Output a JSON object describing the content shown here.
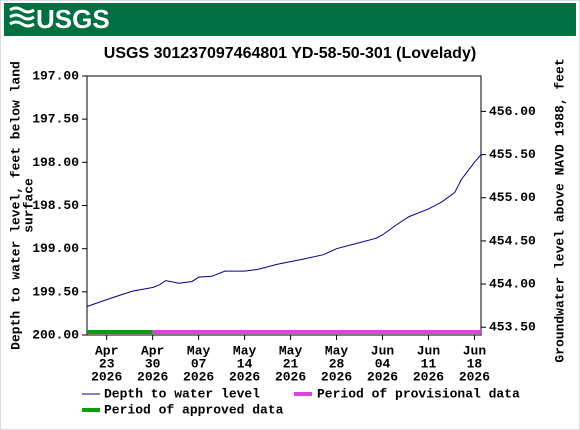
{
  "header": {
    "logo": "USGS"
  },
  "chart_data": {
    "type": "line",
    "title": "USGS 301237097464801 YD-58-50-301 (Lovelady)",
    "y_label": [
      "Depth to water level, feet below land",
      "surface"
    ],
    "y2_label": "Groundwater level above NAVD 1988, feet",
    "x": [
      "2026-04-20",
      "2026-04-23",
      "2026-04-25",
      "2026-04-27",
      "2026-04-30",
      "2026-05-01",
      "2026-05-02",
      "2026-05-04",
      "2026-05-06",
      "2026-05-07",
      "2026-05-09",
      "2026-05-11",
      "2026-05-14",
      "2026-05-16",
      "2026-05-19",
      "2026-05-21",
      "2026-05-23",
      "2026-05-26",
      "2026-05-28",
      "2026-05-31",
      "2026-06-03",
      "2026-06-04",
      "2026-06-06",
      "2026-06-08",
      "2026-06-11",
      "2026-06-13",
      "2026-06-15",
      "2026-06-16",
      "2026-06-17",
      "2026-06-18",
      "2026-06-19"
    ],
    "series": [
      {
        "name": "Depth to water level",
        "color": "#00008b",
        "values": [
          199.67,
          199.59,
          199.54,
          199.49,
          199.45,
          199.42,
          199.37,
          199.4,
          199.38,
          199.33,
          199.32,
          199.26,
          199.26,
          199.24,
          199.18,
          199.15,
          199.12,
          199.07,
          199.0,
          198.94,
          198.88,
          198.84,
          198.73,
          198.63,
          198.54,
          198.46,
          198.35,
          198.2,
          198.1,
          198.0,
          197.91
        ]
      }
    ],
    "periods": [
      {
        "name": "Period of approved data",
        "color": "#109a10",
        "start": "2026-04-20",
        "end": "2026-04-30"
      },
      {
        "name": "Period of provisional data",
        "color": "#e040e0",
        "start": "2026-04-30",
        "end": "2026-06-19"
      }
    ],
    "xlim": [
      "2026-04-20",
      "2026-06-19"
    ],
    "xticks": [
      {
        "value": "2026-04-23",
        "label": [
          "Apr",
          "23",
          "2026"
        ]
      },
      {
        "value": "2026-04-30",
        "label": [
          "Apr",
          "30",
          "2026"
        ]
      },
      {
        "value": "2026-05-07",
        "label": [
          "May",
          "07",
          "2026"
        ]
      },
      {
        "value": "2026-05-14",
        "label": [
          "May",
          "14",
          "2026"
        ]
      },
      {
        "value": "2026-05-21",
        "label": [
          "May",
          "21",
          "2026"
        ]
      },
      {
        "value": "2026-05-28",
        "label": [
          "May",
          "28",
          "2026"
        ]
      },
      {
        "value": "2026-06-04",
        "label": [
          "Jun",
          "04",
          "2026"
        ]
      },
      {
        "value": "2026-06-11",
        "label": [
          "Jun",
          "11",
          "2026"
        ]
      },
      {
        "value": "2026-06-18",
        "label": [
          "Jun",
          "18",
          "2026"
        ]
      }
    ],
    "ylim": [
      200,
      197
    ],
    "yticks": [
      {
        "value": 197,
        "label": "197.00"
      },
      {
        "value": 197.5,
        "label": "197.50"
      },
      {
        "value": 198,
        "label": "198.00"
      },
      {
        "value": 198.5,
        "label": "198.50"
      },
      {
        "value": 199,
        "label": "199.00"
      },
      {
        "value": 199.5,
        "label": "199.50"
      },
      {
        "value": 200,
        "label": "200.00"
      }
    ],
    "y2lim": [
      453.41,
      456.41
    ],
    "y2ticks": [
      {
        "value": 453.5,
        "label": "453.50"
      },
      {
        "value": 454,
        "label": "454.00"
      },
      {
        "value": 454.5,
        "label": "454.50"
      },
      {
        "value": 455,
        "label": "455.00"
      },
      {
        "value": 455.5,
        "label": "455.50"
      },
      {
        "value": 456,
        "label": "456.00"
      }
    ],
    "grid": false
  }
}
